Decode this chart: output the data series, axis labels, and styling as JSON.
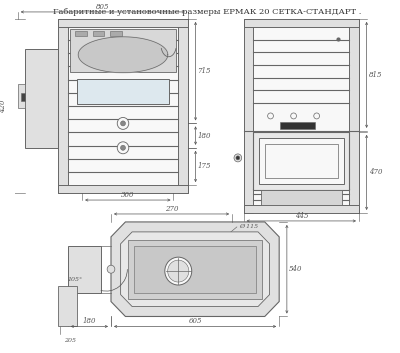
{
  "title": "Габаритные и установочные размеры ЕРМАК 20 СЕТКА-СТАНДАРТ .",
  "title_fontsize": 6.0,
  "bg_color": "#ffffff",
  "line_color": "#666666",
  "fill_light": "#e0e0e0",
  "fill_mid": "#cccccc",
  "fill_white": "#f8f8f8",
  "dim_color": "#555555"
}
